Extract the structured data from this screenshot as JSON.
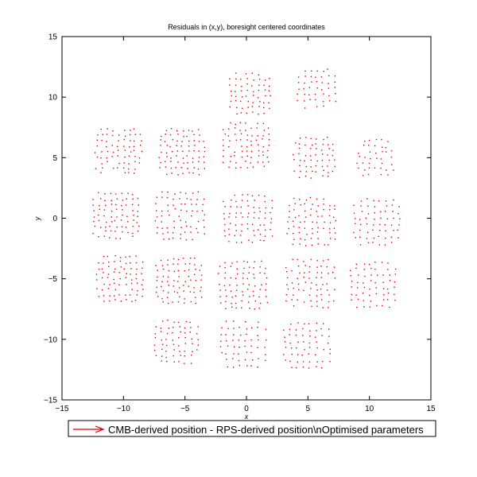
{
  "chart_data": {
    "type": "scatter",
    "title": "Residuals in (x,y), boresight centered coordinates",
    "xlabel": "x",
    "ylabel": "y",
    "xlim": [
      -15,
      15
    ],
    "ylim": [
      -15,
      15
    ],
    "x_ticks": [
      -15,
      -10,
      -5,
      0,
      5,
      10,
      15
    ],
    "y_ticks": [
      -15,
      -10,
      -5,
      0,
      5,
      10,
      15
    ],
    "grid": false,
    "legend_placement": "bottom",
    "marker_color": "#e00000",
    "legend": [
      {
        "label": "CMB-derived position - RPS-derived position\\nOptimised parameters",
        "color": "#e00000",
        "marker": "arrow"
      }
    ],
    "series": [
      {
        "points_kind": "grid-clusters",
        "clusters": [
          {
            "cx": 0.3,
            "cy": 10.3,
            "half_width": 1.6,
            "n": 8
          },
          {
            "cx": 5.7,
            "cy": 10.7,
            "half_width": 1.5,
            "n": 7
          },
          {
            "cx": -10.4,
            "cy": 5.5,
            "half_width": 1.8,
            "n": 9
          },
          {
            "cx": -5.2,
            "cy": 5.5,
            "half_width": 1.8,
            "n": 9
          },
          {
            "cx": 0.0,
            "cy": 6.0,
            "half_width": 1.8,
            "n": 9
          },
          {
            "cx": 5.5,
            "cy": 5.0,
            "half_width": 1.6,
            "n": 8
          },
          {
            "cx": 10.5,
            "cy": 5.0,
            "half_width": 1.4,
            "n": 7
          },
          {
            "cx": -10.6,
            "cy": 0.2,
            "half_width": 1.8,
            "n": 9
          },
          {
            "cx": -5.4,
            "cy": 0.2,
            "half_width": 1.9,
            "n": 9
          },
          {
            "cx": 0.1,
            "cy": 0.0,
            "half_width": 1.9,
            "n": 9
          },
          {
            "cx": 5.3,
            "cy": -0.3,
            "half_width": 1.9,
            "n": 9
          },
          {
            "cx": 10.6,
            "cy": -0.3,
            "half_width": 1.8,
            "n": 8
          },
          {
            "cx": -10.3,
            "cy": -5.0,
            "half_width": 1.8,
            "n": 9
          },
          {
            "cx": -5.5,
            "cy": -5.2,
            "half_width": 1.8,
            "n": 9
          },
          {
            "cx": -0.3,
            "cy": -5.5,
            "half_width": 1.9,
            "n": 9
          },
          {
            "cx": 5.2,
            "cy": -5.4,
            "half_width": 1.9,
            "n": 9
          },
          {
            "cx": 10.3,
            "cy": -5.5,
            "half_width": 1.8,
            "n": 8
          },
          {
            "cx": -5.7,
            "cy": -10.2,
            "half_width": 1.7,
            "n": 8
          },
          {
            "cx": -0.3,
            "cy": -10.4,
            "half_width": 1.8,
            "n": 8
          },
          {
            "cx": 4.9,
            "cy": -10.5,
            "half_width": 1.8,
            "n": 8
          }
        ]
      }
    ]
  }
}
